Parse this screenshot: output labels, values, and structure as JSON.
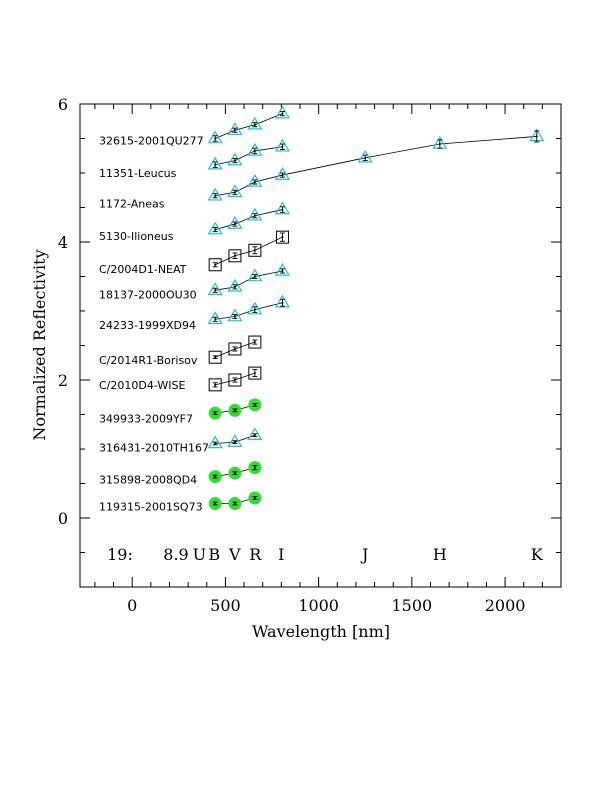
{
  "chart_data": {
    "type": "scatter",
    "xlabel": "Wavelength [nm]",
    "ylabel": "Normalized Reflectivity",
    "xlim": [
      -280,
      2300
    ],
    "ylim": [
      -1,
      6
    ],
    "xticks": [
      0,
      500,
      1000,
      1500,
      2000
    ],
    "yticks": [
      0,
      2,
      4,
      6
    ],
    "footer_left": "19:",
    "footer_value": "8.9",
    "bands": [
      {
        "name": "U",
        "x": 360
      },
      {
        "name": "B",
        "x": 440
      },
      {
        "name": "V",
        "x": 550
      },
      {
        "name": "R",
        "x": 660
      },
      {
        "name": "I",
        "x": 800
      },
      {
        "name": "J",
        "x": 1250
      },
      {
        "name": "H",
        "x": 1650
      },
      {
        "name": "K",
        "x": 2170
      }
    ],
    "band_label_y": -0.52,
    "marker_colors": {
      "triangle": "#22c0d8",
      "square": "#000000",
      "circle": "#33dd33"
    },
    "series": [
      {
        "name": "32615-2001QU277",
        "marker": "triangle",
        "x": [
          445,
          551,
          658,
          806
        ],
        "y": [
          5.5,
          5.62,
          5.7,
          5.86
        ],
        "err": [
          0.04,
          0.03,
          0.03,
          0.03
        ],
        "label_y": 5.47
      },
      {
        "name": "11351-Leucus",
        "marker": "triangle",
        "x": [
          445,
          551,
          658,
          806
        ],
        "y": [
          5.12,
          5.18,
          5.32,
          5.38
        ],
        "err": [
          0.04,
          0.03,
          0.04,
          0.04
        ],
        "label_y": 5.0
      },
      {
        "name": "1172-Aneas",
        "marker": "triangle",
        "x": [
          445,
          551,
          658,
          806,
          1250,
          1650,
          2170
        ],
        "y": [
          4.67,
          4.72,
          4.87,
          4.97,
          5.22,
          5.42,
          5.53
        ],
        "err": [
          0.03,
          0.03,
          0.03,
          0.03,
          0.04,
          0.06,
          0.08
        ],
        "label_y": 4.56
      },
      {
        "name": "5130-Ilioneus",
        "marker": "triangle",
        "x": [
          445,
          551,
          658,
          806
        ],
        "y": [
          4.18,
          4.26,
          4.38,
          4.47
        ],
        "err": [
          0.03,
          0.03,
          0.03,
          0.04
        ],
        "label_y": 4.09
      },
      {
        "name": "C/2004D1-NEAT",
        "marker": "square",
        "x": [
          445,
          551,
          658,
          806
        ],
        "y": [
          3.67,
          3.8,
          3.88,
          4.07
        ],
        "err": [
          0.03,
          0.04,
          0.05,
          0.06
        ],
        "label_y": 3.61
      },
      {
        "name": "18137-2000OU30",
        "marker": "triangle",
        "x": [
          445,
          551,
          658,
          806
        ],
        "y": [
          3.3,
          3.35,
          3.5,
          3.58
        ],
        "err": [
          0.03,
          0.03,
          0.03,
          0.03
        ],
        "label_y": 3.24
      },
      {
        "name": "24233-1999XD94",
        "marker": "triangle",
        "x": [
          445,
          551,
          658,
          806
        ],
        "y": [
          2.88,
          2.92,
          3.02,
          3.12
        ],
        "err": [
          0.03,
          0.03,
          0.04,
          0.05
        ],
        "label_y": 2.8
      },
      {
        "name": "C/2014R1-Borisov",
        "marker": "square",
        "x": [
          445,
          551,
          658
        ],
        "y": [
          2.33,
          2.45,
          2.55
        ],
        "err": [
          0.02,
          0.03,
          0.03
        ],
        "label_y": 2.29
      },
      {
        "name": "C/2010D4-WISE",
        "marker": "square",
        "x": [
          445,
          551,
          658
        ],
        "y": [
          1.93,
          2.0,
          2.1
        ],
        "err": [
          0.03,
          0.03,
          0.05
        ],
        "label_y": 1.93
      },
      {
        "name": "349933-2009YF7",
        "marker": "circle",
        "x": [
          445,
          551,
          658
        ],
        "y": [
          1.52,
          1.56,
          1.64
        ],
        "err": [
          0.02,
          0.02,
          0.02
        ],
        "label_y": 1.44
      },
      {
        "name": "316431-2010TH167",
        "marker": "triangle",
        "x": [
          445,
          551,
          658
        ],
        "y": [
          1.08,
          1.1,
          1.2
        ],
        "err": [
          0.02,
          0.02,
          0.02
        ],
        "label_y": 1.02
      },
      {
        "name": "315898-2008QD4",
        "marker": "circle",
        "x": [
          445,
          551,
          658
        ],
        "y": [
          0.6,
          0.65,
          0.73
        ],
        "err": [
          0.02,
          0.02,
          0.03
        ],
        "label_y": 0.56
      },
      {
        "name": "119315-2001SQ73",
        "marker": "circle",
        "x": [
          445,
          551,
          658
        ],
        "y": [
          0.21,
          0.21,
          0.29
        ],
        "err": [
          0.02,
          0.02,
          0.02
        ],
        "label_y": 0.17
      }
    ]
  }
}
